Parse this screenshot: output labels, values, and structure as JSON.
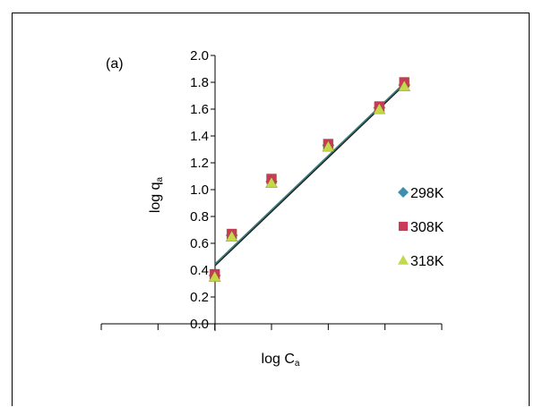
{
  "chart_data": {
    "type": "scatter",
    "panel_label": "(a)",
    "xlabel": {
      "main": "log C",
      "sub": "a"
    },
    "ylabel": {
      "main": "log q",
      "sub": "a"
    },
    "ylim": [
      0,
      2.0
    ],
    "y_ticks": [
      "0.0",
      "0.2",
      "0.4",
      "0.6",
      "0.8",
      "1.0",
      "1.2",
      "1.4",
      "1.6",
      "1.8",
      "2.0"
    ],
    "x_domain": [
      -2.0,
      1.0
    ],
    "x_tick_values": [
      -2.0,
      -1.5,
      -1.0,
      -0.5,
      0.0,
      0.5,
      1.0
    ],
    "x_tick_labels_visible": false,
    "grid": false,
    "legend_position": "right",
    "series": [
      {
        "name": "298K",
        "marker": "diamond",
        "color": "#3d8fb0",
        "points": [
          [
            -1.0,
            0.36
          ],
          [
            -0.85,
            0.66
          ],
          [
            -0.5,
            1.06
          ],
          [
            0.0,
            1.33
          ],
          [
            0.45,
            1.61
          ],
          [
            0.67,
            1.78
          ]
        ]
      },
      {
        "name": "308K",
        "marker": "square",
        "color": "#c73a58",
        "points": [
          [
            -1.0,
            0.37
          ],
          [
            -0.85,
            0.67
          ],
          [
            -0.5,
            1.08
          ],
          [
            0.0,
            1.34
          ],
          [
            0.45,
            1.62
          ],
          [
            0.67,
            1.8
          ]
        ]
      },
      {
        "name": "318K",
        "marker": "triangle",
        "color": "#c4d94a",
        "points": [
          [
            -1.0,
            0.35
          ],
          [
            -0.85,
            0.65
          ],
          [
            -0.5,
            1.05
          ],
          [
            0.0,
            1.32
          ],
          [
            0.45,
            1.6
          ],
          [
            0.67,
            1.77
          ]
        ]
      }
    ],
    "fit_lines": [
      {
        "color": "#3a7a78",
        "from": [
          -1.0,
          0.44
        ],
        "to": [
          0.67,
          1.79
        ]
      },
      {
        "color": "#1a1a1a",
        "from": [
          -1.0,
          0.43
        ],
        "to": [
          0.67,
          1.78
        ]
      }
    ]
  }
}
